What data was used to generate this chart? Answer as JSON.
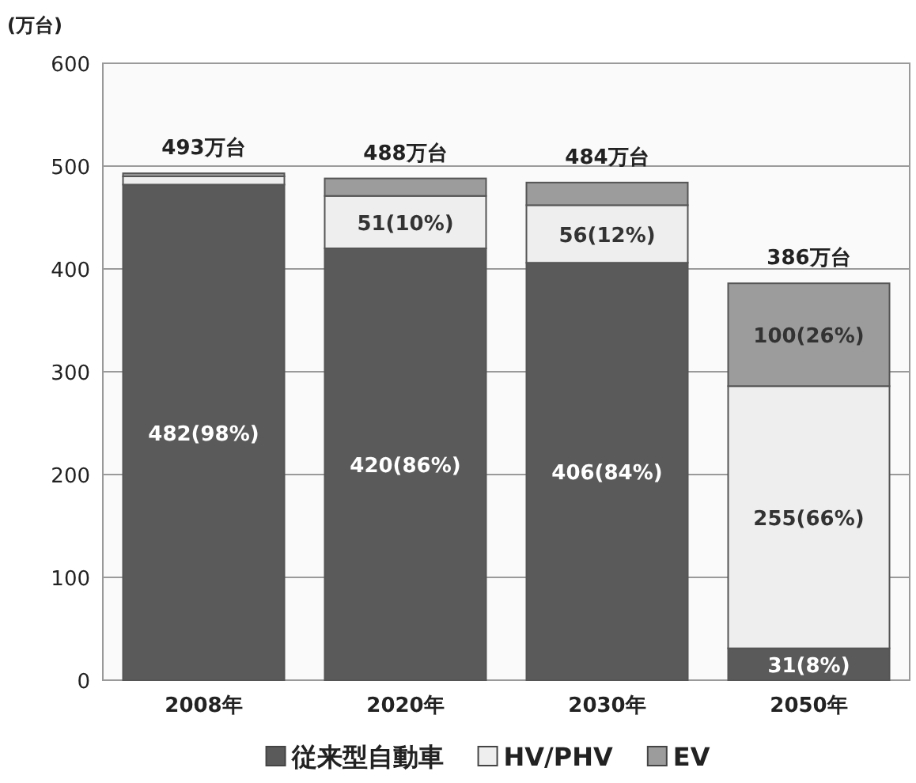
{
  "chart_data": {
    "type": "bar",
    "stacked": true,
    "ylabel": "(万台)",
    "categories": [
      "2008年",
      "2020年",
      "2030年",
      "2050年"
    ],
    "series": [
      {
        "name": "従来型自動車",
        "color": "#5a5a5a",
        "values": [
          482,
          420,
          406,
          31
        ],
        "value_labels": [
          "482(98%)",
          "420(86%)",
          "406(84%)",
          "31(8%)"
        ]
      },
      {
        "name": "HV/PHV",
        "color": "#eeeeee",
        "values": [
          8,
          51,
          56,
          255
        ],
        "value_labels": [
          null,
          "51(10%)",
          "56(12%)",
          "255(66%)"
        ]
      },
      {
        "name": "EV",
        "color": "#9c9c9c",
        "values": [
          3,
          17,
          22,
          100
        ],
        "value_labels": [
          null,
          null,
          null,
          "100(26%)"
        ]
      }
    ],
    "totals": [
      "493万台",
      "488万台",
      "484万台",
      "386万台"
    ],
    "ylim": [
      0,
      600
    ],
    "yticks": [
      0,
      100,
      200,
      300,
      400,
      500,
      600
    ],
    "grid": "y",
    "legend": "bottom"
  }
}
